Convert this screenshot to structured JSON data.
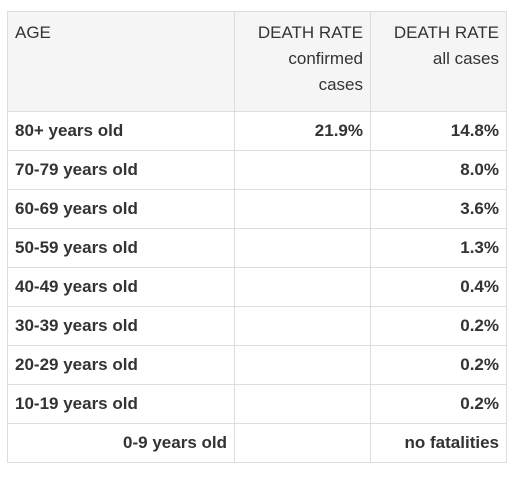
{
  "table": {
    "headers": {
      "age": "AGE",
      "confirmed": {
        "title": "DEATH RATE",
        "line2": "confirmed",
        "line3": "cases"
      },
      "all": {
        "title": "DEATH RATE",
        "line2": "all cases"
      }
    },
    "rows": [
      {
        "age": "80+ years old",
        "confirmed": "21.9%",
        "all": "14.8%"
      },
      {
        "age": "70-79 years old",
        "confirmed": "",
        "all": "8.0%"
      },
      {
        "age": "60-69 years old",
        "confirmed": "",
        "all": "3.6%"
      },
      {
        "age": "50-59 years old",
        "confirmed": "",
        "all": "1.3%"
      },
      {
        "age": "40-49 years old",
        "confirmed": "",
        "all": "0.4%"
      },
      {
        "age": "30-39 years old",
        "confirmed": "",
        "all": "0.2%"
      },
      {
        "age": "20-29 years old",
        "confirmed": "",
        "all": "0.2%"
      },
      {
        "age": "10-19 years old",
        "confirmed": "",
        "all": "0.2%"
      },
      {
        "age": "0-9 years old",
        "confirmed": "",
        "all": "no fatalities"
      }
    ]
  }
}
